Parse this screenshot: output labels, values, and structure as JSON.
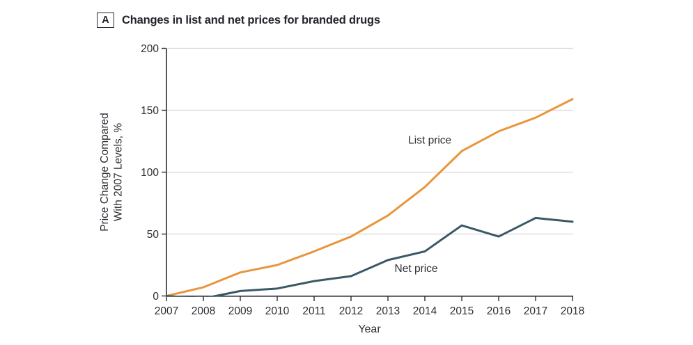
{
  "header": {
    "panel_letter": "A",
    "title": "Changes in list and net prices for branded drugs"
  },
  "colors": {
    "list_line": "#E8963C",
    "net_line": "#3A5965",
    "grid": "#D9D9D9",
    "axis": "#2A2E33",
    "text": "#2A2E33",
    "title": "#23252B",
    "background": "#FFFFFF"
  },
  "chart_data": {
    "type": "line",
    "title": "Changes in list and net prices for branded drugs",
    "xlabel": "Year",
    "ylabel": "Price Change Compared With 2007 Levels, %",
    "ylabel_lines": [
      "Price Change Compared",
      "With 2007 Levels, %"
    ],
    "x": [
      2007,
      2008,
      2009,
      2010,
      2011,
      2012,
      2013,
      2014,
      2015,
      2016,
      2017,
      2018
    ],
    "series": [
      {
        "name": "List price",
        "color": "#E8963C",
        "values": [
          0,
          7,
          19,
          25,
          36,
          48,
          65,
          88,
          117,
          133,
          144,
          159
        ]
      },
      {
        "name": "Net price",
        "color": "#3A5965",
        "values": [
          0,
          -2,
          4,
          6,
          12,
          16,
          29,
          36,
          57,
          48,
          63,
          60
        ]
      }
    ],
    "ylim": [
      0,
      200
    ],
    "yticks": [
      0,
      50,
      100,
      150,
      200
    ],
    "xlim": [
      2007,
      2018
    ],
    "grid": "horizontal-gridlines",
    "legend": "inline-annotations",
    "annotations": [
      {
        "text": "List price",
        "x": 2013.55,
        "y": 123
      },
      {
        "text": "Net price",
        "x": 2013.18,
        "y": 19.5
      }
    ]
  }
}
